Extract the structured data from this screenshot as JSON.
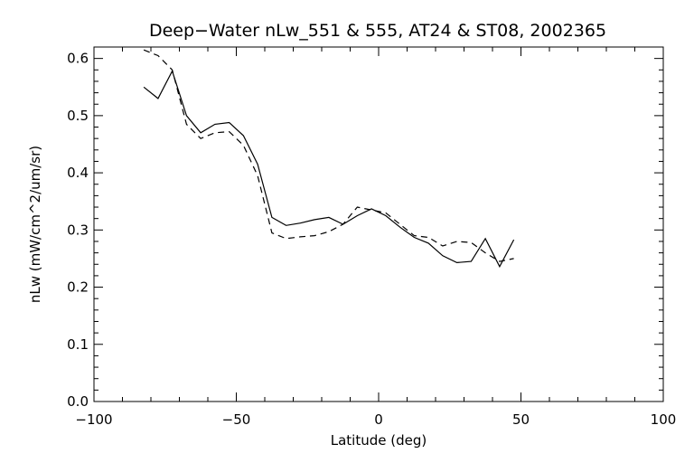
{
  "chart_data": {
    "type": "line",
    "title": "Deep−Water nLw_551 & 555, AT24 & ST08, 2002365",
    "xlabel": "Latitude (deg)",
    "ylabel": "nLw (mW/cm^2/um/sr)",
    "xlim": [
      -100,
      100
    ],
    "ylim": [
      0.0,
      0.62
    ],
    "xticks": [
      -100,
      -50,
      0,
      50,
      100
    ],
    "xtick_labels": [
      "−100",
      "−50",
      "0",
      "50",
      "100"
    ],
    "yticks": [
      0.0,
      0.1,
      0.2,
      0.3,
      0.4,
      0.5,
      0.6
    ],
    "ytick_labels": [
      "0.0",
      "0.1",
      "0.2",
      "0.3",
      "0.4",
      "0.5",
      "0.6"
    ],
    "grid": false,
    "series": [
      {
        "style": "solid",
        "color": "#000000",
        "x": [
          -82.5,
          -77.5,
          -72.5,
          -67.5,
          -62.5,
          -57.5,
          -52.5,
          -47.5,
          -42.5,
          -37.5,
          -32.5,
          -27.5,
          -22.5,
          -17.5,
          -12.5,
          -7.5,
          -2.5,
          2.5,
          7.5,
          12.5,
          17.5,
          22.5,
          27.5,
          32.5,
          37.5,
          42.5,
          47.5
        ],
        "y": [
          0.55,
          0.53,
          0.578,
          0.5,
          0.47,
          0.485,
          0.488,
          0.465,
          0.415,
          0.322,
          0.308,
          0.312,
          0.318,
          0.322,
          0.31,
          0.325,
          0.337,
          0.325,
          0.305,
          0.287,
          0.277,
          0.255,
          0.243,
          0.245,
          0.285,
          0.236,
          0.283
        ]
      },
      {
        "style": "dashed",
        "color": "#000000",
        "x": [
          -82.5,
          -77.5,
          -72.5,
          -67.5,
          -62.5,
          -57.5,
          -52.5,
          -47.5,
          -42.5,
          -37.5,
          -32.5,
          -27.5,
          -22.5,
          -17.5,
          -12.5,
          -7.5,
          -2.5,
          2.5,
          7.5,
          12.5,
          17.5,
          22.5,
          27.5,
          32.5,
          37.5,
          42.5,
          47.5
        ],
        "y": [
          0.615,
          0.605,
          0.58,
          0.485,
          0.46,
          0.47,
          0.472,
          0.448,
          0.395,
          0.295,
          0.285,
          0.288,
          0.29,
          0.297,
          0.31,
          0.34,
          0.335,
          0.33,
          0.31,
          0.29,
          0.287,
          0.272,
          0.28,
          0.278,
          0.26,
          0.245,
          0.25
        ]
      }
    ]
  }
}
